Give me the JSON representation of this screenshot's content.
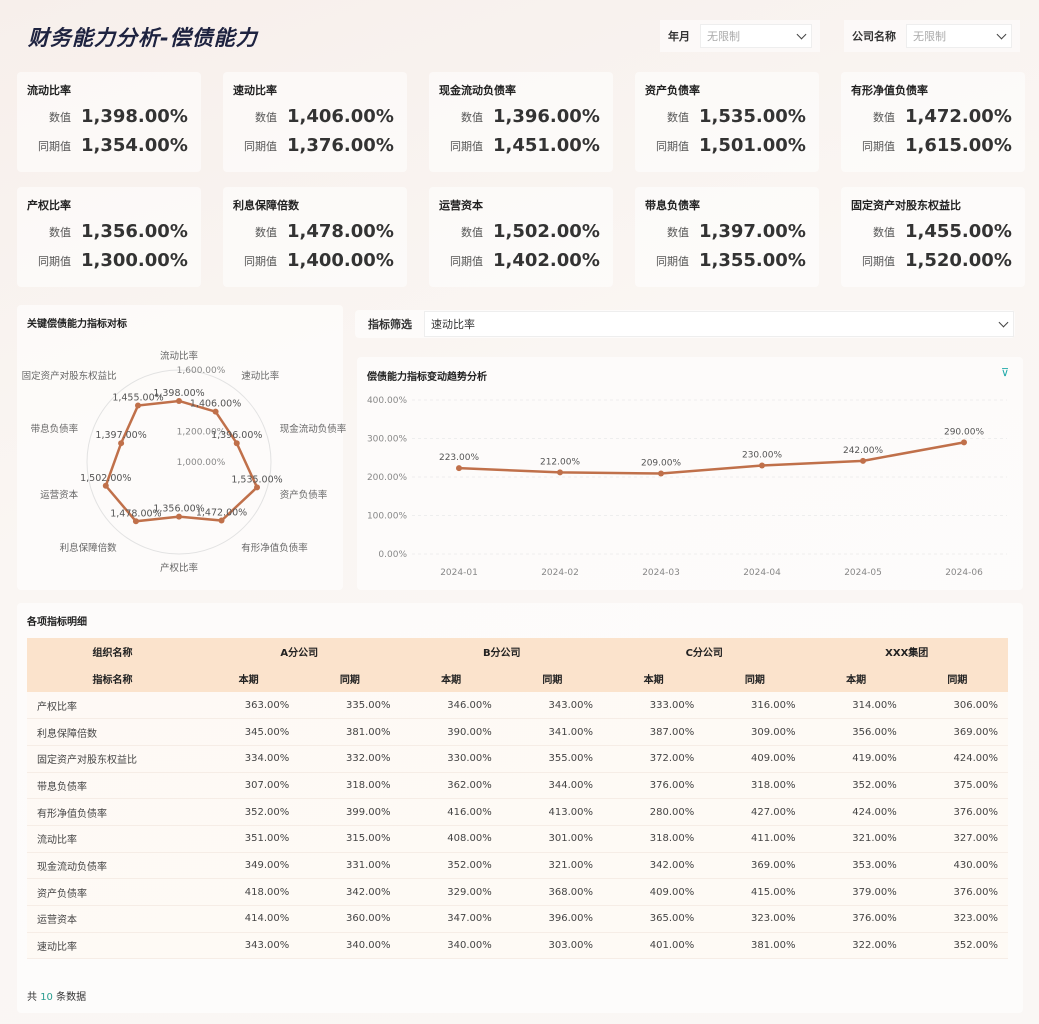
{
  "title": "财务能力分析-偿债能力",
  "filters": [
    {
      "label": "年月",
      "value": "无限制"
    },
    {
      "label": "公司名称",
      "value": "无限制"
    }
  ],
  "kpi_labels": {
    "value": "数值",
    "prior": "同期值"
  },
  "kpis": [
    {
      "name": "流动比率",
      "value": "1,398.00%",
      "prior": "1,354.00%"
    },
    {
      "name": "速动比率",
      "value": "1,406.00%",
      "prior": "1,376.00%"
    },
    {
      "name": "现金流动负债率",
      "value": "1,396.00%",
      "prior": "1,451.00%"
    },
    {
      "name": "资产负债率",
      "value": "1,535.00%",
      "prior": "1,501.00%"
    },
    {
      "name": "有形净值负债率",
      "value": "1,472.00%",
      "prior": "1,615.00%"
    },
    {
      "name": "产权比率",
      "value": "1,356.00%",
      "prior": "1,300.00%"
    },
    {
      "name": "利息保障倍数",
      "value": "1,478.00%",
      "prior": "1,400.00%"
    },
    {
      "name": "运营资本",
      "value": "1,502.00%",
      "prior": "1,402.00%"
    },
    {
      "name": "带息负债率",
      "value": "1,397.00%",
      "prior": "1,355.00%"
    },
    {
      "name": "固定资产对股东权益比",
      "value": "1,455.00%",
      "prior": "1,520.00%"
    }
  ],
  "indicator_filter": {
    "label": "指标筛选",
    "value": "速动比率"
  },
  "accent": "#c0704a",
  "chart_data": [
    {
      "type": "radar",
      "title": "关键偿债能力指标对标",
      "axes": [
        "流动比率",
        "速动比率",
        "现金流动负债率",
        "资产负债率",
        "有形净值负债率",
        "产权比率",
        "利息保障倍数",
        "运营资本",
        "带息负债率",
        "固定资产对股东权益比"
      ],
      "values": [
        1398,
        1406,
        1396,
        1535,
        1472,
        1356,
        1478,
        1502,
        1397,
        1455
      ],
      "labels": [
        "1,398.00%",
        "1,406.00%",
        "1,396.00%",
        "1,535.00%",
        "1,472.00%",
        "1,356.00%",
        "1,478.00%",
        "1,502.00%",
        "1,397.00%",
        "1,455.00%"
      ],
      "range": [
        1000,
        1600
      ],
      "ticks": [
        "1,000.00%",
        "1,200.00%",
        "1,400.00%",
        "1,600.00%"
      ]
    },
    {
      "type": "line",
      "title": "偿债能力指标变动趋势分析",
      "categories": [
        "2024-01",
        "2024-02",
        "2024-03",
        "2024-04",
        "2024-05",
        "2024-06"
      ],
      "values": [
        223,
        212,
        209,
        230,
        242,
        290
      ],
      "labels": [
        "223.00%",
        "212.00%",
        "209.00%",
        "230.00%",
        "242.00%",
        "290.00%"
      ],
      "ylim": [
        0,
        400
      ],
      "yticks": [
        "0.00%",
        "100.00%",
        "200.00%",
        "300.00%",
        "400.00%"
      ],
      "grid": true
    }
  ],
  "table": {
    "title": "各项指标明细",
    "org_header": "组织名称",
    "ind_header": "指标名称",
    "groups": [
      "A分公司",
      "B分公司",
      "C分公司",
      "XXX集团"
    ],
    "sub": [
      "本期",
      "同期"
    ],
    "rows": [
      [
        "产权比率",
        "363.00%",
        "335.00%",
        "346.00%",
        "343.00%",
        "333.00%",
        "316.00%",
        "314.00%",
        "306.00%"
      ],
      [
        "利息保障倍数",
        "345.00%",
        "381.00%",
        "390.00%",
        "341.00%",
        "387.00%",
        "309.00%",
        "356.00%",
        "369.00%"
      ],
      [
        "固定资产对股东权益比",
        "334.00%",
        "332.00%",
        "330.00%",
        "355.00%",
        "372.00%",
        "409.00%",
        "419.00%",
        "424.00%"
      ],
      [
        "带息负债率",
        "307.00%",
        "318.00%",
        "362.00%",
        "344.00%",
        "376.00%",
        "318.00%",
        "352.00%",
        "375.00%"
      ],
      [
        "有形净值负债率",
        "352.00%",
        "399.00%",
        "416.00%",
        "413.00%",
        "280.00%",
        "427.00%",
        "424.00%",
        "376.00%"
      ],
      [
        "流动比率",
        "351.00%",
        "315.00%",
        "408.00%",
        "301.00%",
        "318.00%",
        "411.00%",
        "321.00%",
        "327.00%"
      ],
      [
        "现金流动负债率",
        "349.00%",
        "331.00%",
        "352.00%",
        "321.00%",
        "342.00%",
        "369.00%",
        "353.00%",
        "430.00%"
      ],
      [
        "资产负债率",
        "418.00%",
        "342.00%",
        "329.00%",
        "368.00%",
        "409.00%",
        "415.00%",
        "379.00%",
        "376.00%"
      ],
      [
        "运营资本",
        "414.00%",
        "360.00%",
        "347.00%",
        "396.00%",
        "365.00%",
        "323.00%",
        "376.00%",
        "323.00%"
      ],
      [
        "速动比率",
        "343.00%",
        "340.00%",
        "340.00%",
        "303.00%",
        "401.00%",
        "381.00%",
        "322.00%",
        "352.00%"
      ]
    ]
  },
  "footer": {
    "prefix": "共",
    "count": "10",
    "suffix": "条数据"
  }
}
